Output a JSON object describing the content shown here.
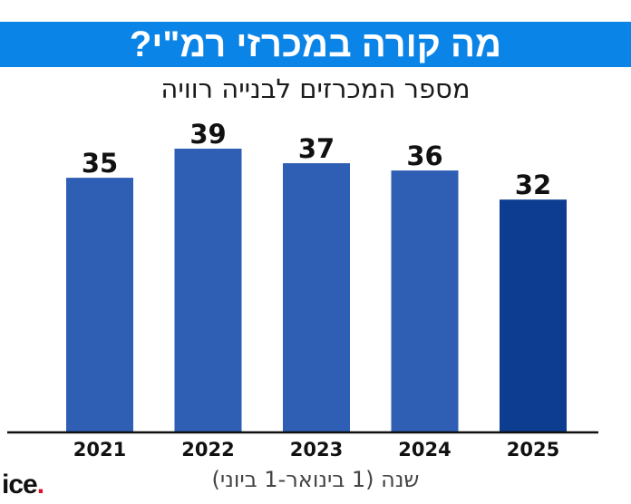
{
  "chart_data": {
    "type": "bar",
    "title": "מה קורה במכרזי רמ\"י?",
    "subtitle": "מספר המכרזים לבנייה רוויה",
    "xlabel": "שנה (1 בינואר-1 ביוני)",
    "ylabel": "",
    "categories": [
      "2021",
      "2022",
      "2023",
      "2024",
      "2025"
    ],
    "values": [
      35,
      39,
      37,
      36,
      32
    ],
    "ylim": [
      0,
      39
    ],
    "grid": false,
    "colors": {
      "bar": "#2e5fb5",
      "highlight_bar": "#0c3d91",
      "title_bg": "#0a84e6",
      "axis": "#111111"
    },
    "highlight_index": 4
  },
  "logo": {
    "text": "ice",
    "dot": "."
  }
}
